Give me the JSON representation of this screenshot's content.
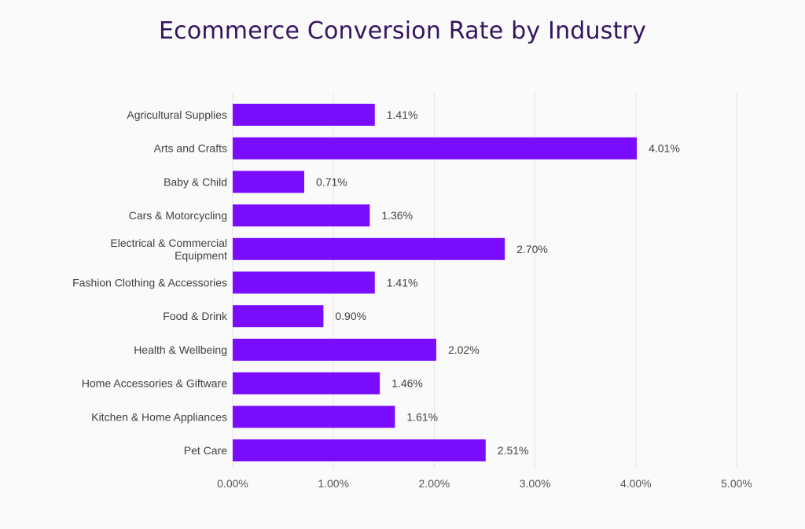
{
  "colors": {
    "bar": "#7a0cff",
    "title": "#35145e",
    "background": "#fafafa"
  },
  "chart_data": {
    "type": "bar",
    "orientation": "horizontal",
    "title": "Ecommerce Conversion Rate by Industry",
    "xlabel": "",
    "ylabel": "",
    "categories": [
      "Agricultural Supplies",
      "Arts and Crafts",
      "Baby & Child",
      "Cars & Motorcycling",
      "Electrical & Commercial Equipment",
      "Fashion Clothing & Accessories",
      "Food & Drink",
      "Health & Wellbeing",
      "Home Accessories & Giftware",
      "Kitchen & Home Appliances",
      "Pet Care"
    ],
    "values": [
      1.41,
      4.01,
      0.71,
      1.36,
      2.7,
      1.41,
      0.9,
      2.02,
      1.46,
      1.61,
      2.51
    ],
    "data_labels": [
      "1.41%",
      "4.01%",
      "0.71%",
      "1.36%",
      "2.70%",
      "1.41%",
      "0.90%",
      "2.02%",
      "1.46%",
      "1.61%",
      "2.51%"
    ],
    "xlim": [
      0,
      5
    ],
    "x_ticks": [
      0,
      1,
      2,
      3,
      4,
      5
    ],
    "x_tick_labels": [
      "0.00%",
      "1.00%",
      "2.00%",
      "3.00%",
      "4.00%",
      "5.00%"
    ],
    "grid": true,
    "legend": "none"
  }
}
